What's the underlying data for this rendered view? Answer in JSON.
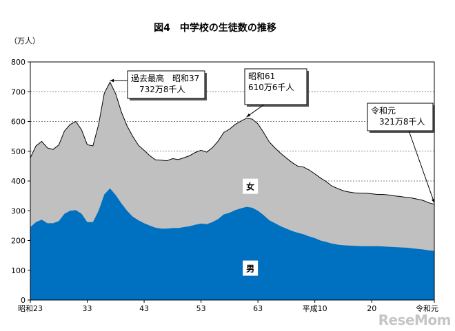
{
  "chart_data": {
    "type": "area",
    "title": "図4　中学校の生徒数の推移",
    "unit_label": "（万人）",
    "ylim": [
      0,
      800
    ],
    "yticks": [
      0,
      100,
      200,
      300,
      400,
      500,
      600,
      700,
      800
    ],
    "x": [
      1948,
      1949,
      1950,
      1951,
      1952,
      1953,
      1954,
      1955,
      1956,
      1957,
      1958,
      1959,
      1960,
      1961,
      1962,
      1963,
      1964,
      1965,
      1966,
      1967,
      1968,
      1969,
      1970,
      1971,
      1972,
      1973,
      1974,
      1975,
      1976,
      1977,
      1978,
      1979,
      1980,
      1981,
      1982,
      1983,
      1984,
      1985,
      1986,
      1987,
      1988,
      1989,
      1990,
      1991,
      1992,
      1993,
      1994,
      1995,
      1996,
      1997,
      1998,
      1999,
      2000,
      2001,
      2002,
      2003,
      2004,
      2005,
      2006,
      2007,
      2008,
      2009,
      2010,
      2011,
      2012,
      2013,
      2014,
      2015,
      2016,
      2017,
      2018,
      2019
    ],
    "x_tick_labels": [
      {
        "x": 1948,
        "label": "昭和23"
      },
      {
        "x": 1958,
        "label": "33"
      },
      {
        "x": 1968,
        "label": "43"
      },
      {
        "x": 1978,
        "label": "53"
      },
      {
        "x": 1988,
        "label": "63"
      },
      {
        "x": 1998,
        "label": "平成10"
      },
      {
        "x": 2008,
        "label": "20"
      },
      {
        "x": 2019,
        "label": "令和元"
      }
    ],
    "series": [
      {
        "name": "男",
        "color": "#0070c0",
        "values": [
          245,
          262,
          270,
          258,
          258,
          265,
          290,
          300,
          302,
          290,
          262,
          262,
          300,
          355,
          375,
          353,
          325,
          300,
          280,
          268,
          258,
          250,
          243,
          240,
          240,
          242,
          242,
          245,
          248,
          253,
          257,
          255,
          262,
          272,
          288,
          293,
          302,
          308,
          313,
          310,
          300,
          285,
          268,
          258,
          248,
          240,
          232,
          226,
          221,
          214,
          208,
          200,
          195,
          190,
          186,
          184,
          183,
          182,
          181,
          181,
          181,
          181,
          180,
          179,
          178,
          177,
          176,
          174,
          172,
          170,
          167,
          165
        ]
      },
      {
        "name": "女",
        "color": "#c0c0c0",
        "values": [
          233,
          256,
          263,
          253,
          248,
          256,
          278,
          290,
          298,
          282,
          260,
          256,
          290,
          340,
          357,
          340,
          307,
          285,
          270,
          252,
          245,
          235,
          228,
          230,
          228,
          233,
          230,
          233,
          237,
          243,
          246,
          242,
          250,
          262,
          275,
          281,
          288,
          293,
          298,
          298,
          292,
          278,
          263,
          253,
          245,
          237,
          230,
          224,
          226,
          223,
          216,
          210,
          203,
          193,
          189,
          183,
          180,
          178,
          178,
          178,
          176,
          174,
          175,
          174,
          172,
          171,
          169,
          169,
          167,
          165,
          160,
          157
        ]
      }
    ],
    "annotations": [
      {
        "label": "過去最高　昭和37\n　732万8千人",
        "x": 1962,
        "y": 732.8
      },
      {
        "label": "昭和61\n610万6千人",
        "x": 1986,
        "y": 610.6
      },
      {
        "label": "令和元\n　321万8千人",
        "x": 2019,
        "y": 321.8
      }
    ],
    "area_labels": [
      {
        "text": "女",
        "x": 1988,
        "y": 380
      },
      {
        "text": "男",
        "x": 1988,
        "y": 105
      }
    ],
    "grid": true,
    "legend": "none"
  },
  "watermark": "ReseMom"
}
